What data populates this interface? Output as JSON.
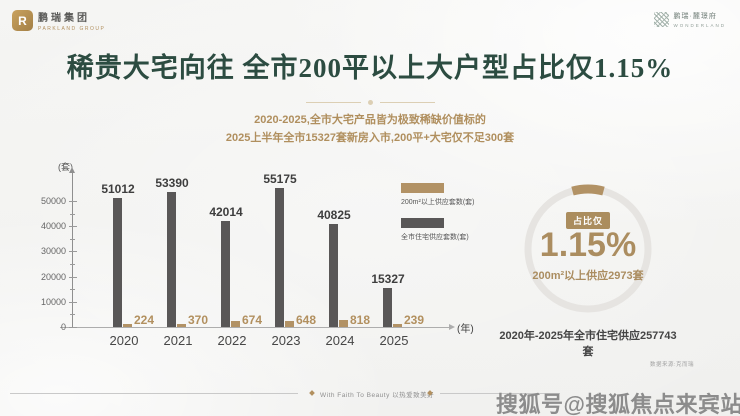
{
  "header": {
    "logo_left": {
      "mark": "R",
      "name": "鹏瑞集团",
      "subtitle": "PARKLAND GROUP"
    },
    "logo_right": {
      "name": "鹏瑞·麓璟府",
      "subtitle": "WONDERLAND"
    }
  },
  "title": "稀贵大宅向往 全市200平以上大户型占比仅1.15%",
  "subtitle_line1": "2020-2025,全市大宅产品皆为极致稀缺价值标的",
  "subtitle_line2": "2025上半年全市15327套新房入市,200平+大宅仅不足300套",
  "chart_data": {
    "type": "bar",
    "categories": [
      "2020",
      "2021",
      "2022",
      "2023",
      "2024",
      "2025"
    ],
    "series": [
      {
        "name": "全市住宅供应套数(套)",
        "color": "#595757",
        "values": [
          51012,
          53390,
          42014,
          55175,
          40825,
          15327
        ]
      },
      {
        "name": "200m²以上供应套数(套)",
        "color": "#b29265",
        "values": [
          224,
          370,
          674,
          648,
          818,
          239
        ]
      }
    ],
    "ylabel": "(套)",
    "xlabel": "(年)",
    "ylim": [
      0,
      55000
    ],
    "yticks": [
      0,
      10000,
      20000,
      30000,
      40000,
      50000
    ],
    "grid": false,
    "legend_position": "right"
  },
  "legend": [
    {
      "label": "200m²以上供应套数(套)",
      "color": "#b29265"
    },
    {
      "label": "全市住宅供应套数(套)",
      "color": "#595757"
    }
  ],
  "donut": {
    "badge": "占比仅",
    "value": "1.15%",
    "percent": 1.15,
    "caption": "200m²以上供应2973套",
    "footnote": "2020年-2025年全市住宅供应257743套",
    "ring_color": "#e6e4e1",
    "arc_color": "#b29265"
  },
  "footnotes": {
    "source": "数据来源:克而瑞",
    "slogan": "With Faith To Beauty 以热爱致美好",
    "watermark": "搜狐号@搜狐焦点来宾站"
  },
  "colors": {
    "title_green": "#2c4c41",
    "gold": "#b2905f",
    "bar_gray": "#595757",
    "bar_tan": "#b29265",
    "text_dark": "#474747"
  }
}
